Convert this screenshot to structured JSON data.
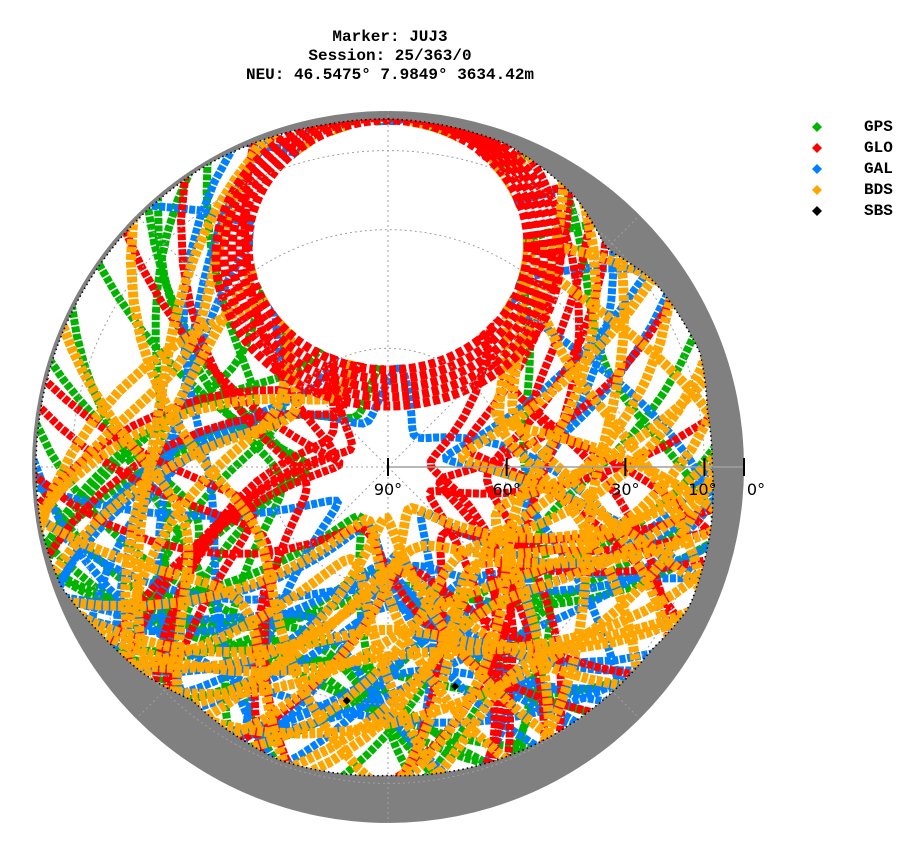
{
  "title": {
    "line1": "Marker: JUJ3",
    "line2": "Session: 25/363/0",
    "line3": "NEU: 46.5475° 7.9849° 3634.42m"
  },
  "legend": [
    {
      "label": "GPS",
      "color": "#00b400"
    },
    {
      "label": "GLO",
      "color": "#ff0000"
    },
    {
      "label": "GAL",
      "color": "#0080ff"
    },
    {
      "label": "BDS",
      "color": "#ffa500"
    },
    {
      "label": "SBS",
      "color": "#000000"
    }
  ],
  "chart_data": {
    "type": "scatter",
    "subtype": "polar-skyplot",
    "title": "Marker: JUJ3 / Session: 25/363/0 / NEU: 46.5475° 7.9849° 3634.42m",
    "radial_axis": {
      "quantity": "elevation",
      "tick_labels": [
        "90°",
        "60°",
        "30°",
        "10°",
        "0°"
      ],
      "tick_values": [
        90,
        60,
        30,
        10,
        0
      ],
      "range": [
        0,
        90
      ]
    },
    "grid": {
      "rings_elevation": [
        10,
        30,
        60
      ],
      "spokes_azimuth": [
        0,
        45,
        90,
        135,
        180,
        225,
        270,
        315
      ],
      "style": "dotted gray"
    },
    "horizon_mask_fill": "#808080",
    "series": [
      {
        "name": "GPS",
        "color": "#00b400",
        "description": "dense tracks across south, east and west sky; absent near north"
      },
      {
        "name": "GLO",
        "color": "#ff0000",
        "description": "tracks ring the northern hole (elev ~45-75°) and descend to south"
      },
      {
        "name": "GAL",
        "color": "#0080ff",
        "description": "dense tracks over south, east and west; edge of northern hole"
      },
      {
        "name": "BDS",
        "color": "#ffa500",
        "description": "most dense; crossing arcs over mid-elevations east and west"
      },
      {
        "name": "SBS",
        "color": "#000000",
        "description": "two fixed points",
        "points": [
          {
            "az": 190,
            "el": 30
          },
          {
            "az": 163,
            "el": 32
          }
        ]
      }
    ],
    "legend_position": "upper right"
  }
}
